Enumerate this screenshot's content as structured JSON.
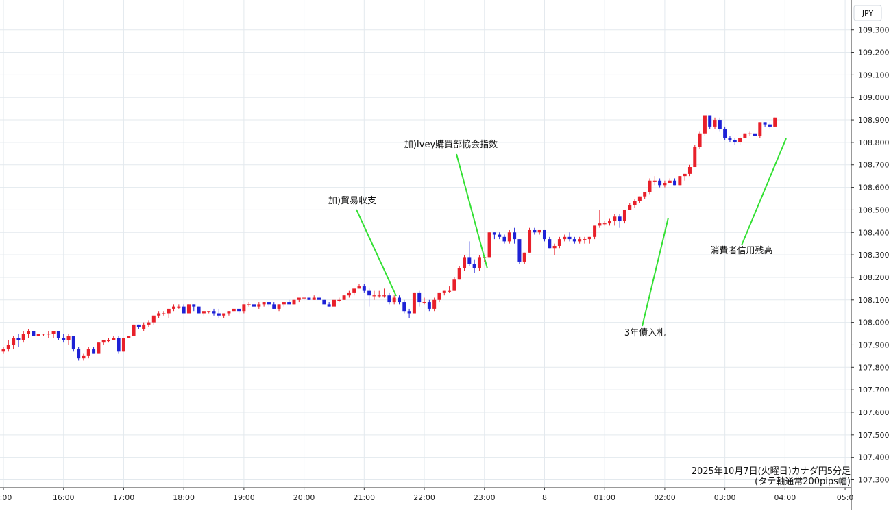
{
  "chart_data": {
    "type": "candlestick",
    "currency_label": "JPY",
    "caption_line1": "2025年10月7日(火曜日)カナダ円5分足",
    "caption_line2": "(タテ軸通常200pips幅)",
    "ylim": [
      107.25,
      109.35
    ],
    "y_ticks": [
      "107.300",
      "107.400",
      "107.500",
      "107.600",
      "107.700",
      "107.800",
      "107.900",
      "108.000",
      "108.100",
      "108.200",
      "108.300",
      "108.400",
      "108.500",
      "108.600",
      "108.700",
      "108.800",
      "108.900",
      "109.000",
      "109.100",
      "109.200",
      "109.300"
    ],
    "x_labels": [
      {
        "label": "5:00",
        "t": 0
      },
      {
        "label": "16:00",
        "t": 12
      },
      {
        "label": "17:00",
        "t": 24
      },
      {
        "label": "18:00",
        "t": 36
      },
      {
        "label": "19:00",
        "t": 48
      },
      {
        "label": "20:00",
        "t": 60
      },
      {
        "label": "21:00",
        "t": 72
      },
      {
        "label": "22:00",
        "t": 84
      },
      {
        "label": "23:00",
        "t": 96
      },
      {
        "label": "8",
        "t": 108
      },
      {
        "label": "01:00",
        "t": 120
      },
      {
        "label": "02:00",
        "t": 132
      },
      {
        "label": "03:00",
        "t": 144
      },
      {
        "label": "04:00",
        "t": 156
      },
      {
        "label": "05:0",
        "t": 168
      }
    ],
    "colors": {
      "up": "#e8202a",
      "down": "#1e22d6",
      "grid": "#e3e9ee",
      "axis": "#333333",
      "annotation_line": "#33e033",
      "text": "#111111"
    },
    "candles": [
      [
        107.87,
        107.89,
        107.86,
        107.88
      ],
      [
        107.88,
        107.92,
        107.87,
        107.9
      ],
      [
        107.9,
        107.94,
        107.88,
        107.93
      ],
      [
        107.93,
        107.95,
        107.89,
        107.92
      ],
      [
        107.92,
        107.96,
        107.91,
        107.95
      ],
      [
        107.95,
        107.97,
        107.93,
        107.96
      ],
      [
        107.96,
        107.96,
        107.94,
        107.94
      ],
      [
        107.94,
        107.95,
        107.94,
        107.95
      ],
      [
        107.95,
        107.95,
        107.94,
        107.95
      ],
      [
        107.95,
        107.96,
        107.93,
        107.95
      ],
      [
        107.95,
        107.96,
        107.93,
        107.96
      ],
      [
        107.96,
        107.96,
        107.92,
        107.93
      ],
      [
        107.93,
        107.95,
        107.91,
        107.92
      ],
      [
        107.92,
        107.95,
        107.9,
        107.94
      ],
      [
        107.94,
        107.94,
        107.87,
        107.88
      ],
      [
        107.88,
        107.89,
        107.83,
        107.84
      ],
      [
        107.84,
        107.86,
        107.83,
        107.85
      ],
      [
        107.85,
        107.89,
        107.84,
        107.88
      ],
      [
        107.88,
        107.89,
        107.86,
        107.86
      ],
      [
        107.86,
        107.91,
        107.86,
        107.91
      ],
      [
        107.91,
        107.92,
        107.9,
        107.92
      ],
      [
        107.92,
        107.93,
        107.91,
        107.92
      ],
      [
        107.92,
        107.94,
        107.92,
        107.93
      ],
      [
        107.93,
        107.94,
        107.86,
        107.87
      ],
      [
        107.87,
        107.93,
        107.87,
        107.93
      ],
      [
        107.93,
        107.94,
        107.93,
        107.94
      ],
      [
        107.94,
        107.99,
        107.94,
        107.99
      ],
      [
        107.99,
        107.99,
        107.97,
        107.98
      ],
      [
        107.97,
        108.0,
        107.96,
        107.99
      ],
      [
        107.99,
        108.01,
        107.98,
        108.0
      ],
      [
        108.0,
        108.03,
        107.99,
        108.03
      ],
      [
        108.03,
        108.05,
        108.02,
        108.04
      ],
      [
        108.04,
        108.05,
        108.03,
        108.04
      ],
      [
        108.04,
        108.06,
        108.02,
        108.06
      ],
      [
        108.06,
        108.08,
        108.05,
        108.07
      ],
      [
        108.07,
        108.08,
        108.06,
        108.07
      ],
      [
        108.07,
        108.08,
        108.04,
        108.04
      ],
      [
        108.04,
        108.08,
        108.04,
        108.08
      ],
      [
        108.08,
        108.08,
        108.05,
        108.07
      ],
      [
        108.07,
        108.07,
        108.04,
        108.04
      ],
      [
        108.04,
        108.05,
        108.03,
        108.05
      ],
      [
        108.05,
        108.05,
        108.04,
        108.05
      ],
      [
        108.05,
        108.06,
        108.03,
        108.04
      ],
      [
        108.04,
        108.06,
        108.02,
        108.03
      ],
      [
        108.03,
        108.04,
        108.02,
        108.04
      ],
      [
        108.04,
        108.05,
        108.03,
        108.05
      ],
      [
        108.05,
        108.06,
        108.05,
        108.06
      ],
      [
        108.06,
        108.06,
        108.04,
        108.05
      ],
      [
        108.05,
        108.08,
        108.04,
        108.08
      ],
      [
        108.08,
        108.09,
        108.07,
        108.08
      ],
      [
        108.08,
        108.09,
        108.07,
        108.07
      ],
      [
        108.07,
        108.09,
        108.06,
        108.08
      ],
      [
        108.08,
        108.09,
        108.07,
        108.09
      ],
      [
        108.09,
        108.09,
        108.07,
        108.08
      ],
      [
        108.08,
        108.09,
        108.06,
        108.06
      ],
      [
        108.06,
        108.08,
        108.05,
        108.08
      ],
      [
        108.08,
        108.09,
        108.07,
        108.09
      ],
      [
        108.09,
        108.1,
        108.08,
        108.08
      ],
      [
        108.08,
        108.1,
        108.08,
        108.1
      ],
      [
        108.1,
        108.11,
        108.09,
        108.11
      ],
      [
        108.11,
        108.11,
        108.1,
        108.11
      ],
      [
        108.11,
        108.11,
        108.1,
        108.1
      ],
      [
        108.1,
        108.12,
        108.1,
        108.11
      ],
      [
        108.11,
        108.12,
        108.1,
        108.1
      ],
      [
        108.1,
        108.1,
        108.08,
        108.08
      ],
      [
        108.08,
        108.09,
        108.07,
        108.07
      ],
      [
        108.07,
        108.1,
        108.07,
        108.1
      ],
      [
        108.1,
        108.11,
        108.09,
        108.1
      ],
      [
        108.1,
        108.12,
        108.1,
        108.12
      ],
      [
        108.12,
        108.14,
        108.11,
        108.13
      ],
      [
        108.13,
        108.15,
        108.12,
        108.15
      ],
      [
        108.15,
        108.17,
        108.15,
        108.16
      ],
      [
        108.16,
        108.17,
        108.13,
        108.14
      ],
      [
        108.14,
        108.15,
        108.07,
        108.12
      ],
      [
        108.12,
        108.14,
        108.1,
        108.12
      ],
      [
        108.12,
        108.14,
        108.11,
        108.12
      ],
      [
        108.12,
        108.15,
        108.11,
        108.12
      ],
      [
        108.12,
        108.13,
        108.08,
        108.09
      ],
      [
        108.09,
        108.12,
        108.08,
        108.11
      ],
      [
        108.11,
        108.12,
        108.08,
        108.09
      ],
      [
        108.09,
        108.1,
        108.04,
        108.05
      ],
      [
        108.05,
        108.06,
        108.02,
        108.04
      ],
      [
        108.04,
        108.13,
        108.04,
        108.13
      ],
      [
        108.13,
        108.14,
        108.07,
        108.09
      ],
      [
        108.09,
        108.11,
        108.08,
        108.09
      ],
      [
        108.09,
        108.1,
        108.05,
        108.06
      ],
      [
        108.06,
        108.11,
        108.05,
        108.1
      ],
      [
        108.1,
        108.13,
        108.09,
        108.13
      ],
      [
        108.13,
        108.14,
        108.12,
        108.14
      ],
      [
        108.14,
        108.16,
        108.13,
        108.14
      ],
      [
        108.14,
        108.2,
        108.14,
        108.19
      ],
      [
        108.19,
        108.25,
        108.19,
        108.24
      ],
      [
        108.24,
        108.3,
        108.23,
        108.29
      ],
      [
        108.29,
        108.36,
        108.25,
        108.26
      ],
      [
        108.26,
        108.28,
        108.22,
        108.24
      ],
      [
        108.24,
        108.3,
        108.23,
        108.29
      ],
      [
        108.29,
        108.3,
        108.27,
        108.29
      ],
      [
        108.29,
        108.4,
        108.29,
        108.4
      ],
      [
        108.4,
        108.4,
        108.37,
        108.39
      ],
      [
        108.39,
        108.4,
        108.37,
        108.38
      ],
      [
        108.38,
        108.39,
        108.35,
        108.36
      ],
      [
        108.36,
        108.41,
        108.35,
        108.4
      ],
      [
        108.4,
        108.42,
        108.35,
        108.37
      ],
      [
        108.37,
        108.37,
        108.26,
        108.27
      ],
      [
        108.27,
        108.31,
        108.26,
        108.31
      ],
      [
        108.31,
        108.42,
        108.31,
        108.41
      ],
      [
        108.41,
        108.42,
        108.39,
        108.4
      ],
      [
        108.4,
        108.41,
        108.39,
        108.41
      ],
      [
        108.41,
        108.41,
        108.36,
        108.37
      ],
      [
        108.37,
        108.38,
        108.33,
        108.33
      ],
      [
        108.33,
        108.35,
        108.3,
        108.34
      ],
      [
        108.34,
        108.38,
        108.33,
        108.37
      ],
      [
        108.37,
        108.39,
        108.36,
        108.38
      ],
      [
        108.38,
        108.4,
        108.36,
        108.37
      ],
      [
        108.37,
        108.38,
        108.35,
        108.36
      ],
      [
        108.36,
        108.38,
        108.35,
        108.37
      ],
      [
        108.37,
        108.38,
        108.35,
        108.37
      ],
      [
        108.37,
        108.38,
        108.35,
        108.38
      ],
      [
        108.38,
        108.43,
        108.37,
        108.43
      ],
      [
        108.43,
        108.5,
        108.42,
        108.44
      ],
      [
        108.44,
        108.45,
        108.43,
        108.44
      ],
      [
        108.44,
        108.46,
        108.43,
        108.45
      ],
      [
        108.45,
        108.48,
        108.43,
        108.47
      ],
      [
        108.47,
        108.48,
        108.42,
        108.45
      ],
      [
        108.45,
        108.5,
        108.44,
        108.5
      ],
      [
        108.5,
        108.53,
        108.5,
        108.52
      ],
      [
        108.52,
        108.55,
        108.51,
        108.54
      ],
      [
        108.54,
        108.56,
        108.53,
        108.56
      ],
      [
        108.56,
        108.58,
        108.55,
        108.58
      ],
      [
        108.58,
        108.64,
        108.57,
        108.63
      ],
      [
        108.63,
        108.65,
        108.61,
        108.63
      ],
      [
        108.63,
        108.64,
        108.6,
        108.61
      ],
      [
        108.61,
        108.63,
        108.6,
        108.62
      ],
      [
        108.62,
        108.64,
        108.62,
        108.63
      ],
      [
        108.63,
        108.64,
        108.61,
        108.61
      ],
      [
        108.61,
        108.65,
        108.61,
        108.65
      ],
      [
        108.65,
        108.66,
        108.63,
        108.66
      ],
      [
        108.66,
        108.7,
        108.65,
        108.69
      ],
      [
        108.69,
        108.79,
        108.69,
        108.78
      ],
      [
        108.78,
        108.85,
        108.77,
        108.84
      ],
      [
        108.84,
        108.92,
        108.83,
        108.92
      ],
      [
        108.92,
        108.92,
        108.86,
        108.87
      ],
      [
        108.87,
        108.91,
        108.86,
        108.9
      ],
      [
        108.9,
        108.91,
        108.85,
        108.86
      ],
      [
        108.86,
        108.87,
        108.81,
        108.82
      ],
      [
        108.82,
        108.83,
        108.8,
        108.81
      ],
      [
        108.81,
        108.82,
        108.79,
        108.8
      ],
      [
        108.8,
        108.83,
        108.79,
        108.82
      ],
      [
        108.82,
        108.84,
        108.82,
        108.84
      ],
      [
        108.84,
        108.85,
        108.83,
        108.84
      ],
      [
        108.84,
        108.84,
        108.82,
        108.83
      ],
      [
        108.83,
        108.89,
        108.82,
        108.89
      ],
      [
        108.89,
        108.89,
        108.87,
        108.88
      ],
      [
        108.88,
        108.89,
        108.86,
        108.87
      ],
      [
        108.87,
        108.91,
        108.87,
        108.91
      ]
    ],
    "annotations": [
      {
        "text": "加)貿易収支",
        "text_x": 514,
        "text_y": 297,
        "line": [
          520,
          306,
          578,
          432
        ]
      },
      {
        "text": "加)Ivey購買部協会指数",
        "text_x": 658,
        "text_y": 215,
        "line": [
          666,
          225,
          711,
          392
        ]
      },
      {
        "text": "3年債入札",
        "text_x": 941,
        "text_y": 490,
        "line": [
          937,
          476,
          975,
          318
        ]
      },
      {
        "text": "消費者信用残高",
        "text_x": 1082,
        "text_y": 370,
        "line": [
          1082,
          358,
          1147,
          202
        ]
      }
    ]
  }
}
